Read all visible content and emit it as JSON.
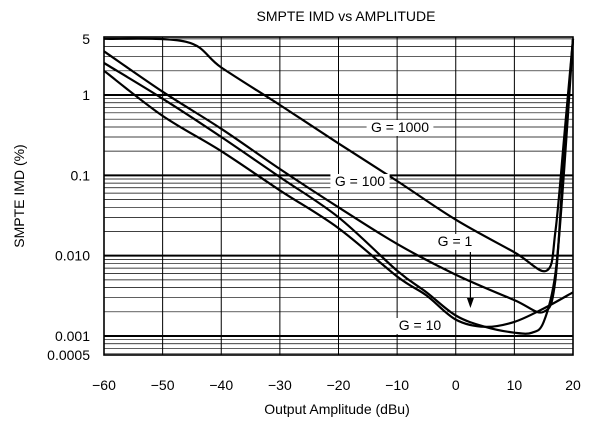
{
  "chart_data": {
    "type": "line",
    "title": "SMPTE IMD vs AMPLITUDE",
    "xlabel": "Output Amplitude (dBu)",
    "ylabel": "SMPTE IMD (%)",
    "xscale": "linear",
    "yscale": "log",
    "xlim": [
      -60,
      20
    ],
    "ylim": [
      0.0005,
      5
    ],
    "xticks": [
      -60,
      -50,
      -40,
      -30,
      -20,
      -10,
      0,
      10,
      20
    ],
    "xtick_labels": [
      "−60",
      "−50",
      "−40",
      "−30",
      "−20",
      "−10",
      "0",
      "10",
      "20"
    ],
    "yticks": [
      0.0005,
      0.001,
      0.01,
      0.1,
      1,
      5
    ],
    "ytick_labels": [
      "0.0005",
      "0.001",
      "0.010",
      "0.1",
      "1",
      "5"
    ],
    "grid": true,
    "series": [
      {
        "name": "G = 1000",
        "x": [
          -60,
          -46,
          -40,
          -30,
          -20,
          -10,
          0,
          10,
          15.5,
          17,
          18.5,
          20
        ],
        "y": [
          5,
          4.6,
          2.2,
          0.75,
          0.25,
          0.085,
          0.028,
          0.011,
          0.0065,
          0.02,
          0.3,
          5
        ]
      },
      {
        "name": "G = 100",
        "x": [
          -60,
          -50,
          -40,
          -30,
          -20,
          -10,
          0,
          10,
          15,
          17,
          18.5,
          20
        ],
        "y": [
          3.5,
          1.1,
          0.38,
          0.12,
          0.04,
          0.014,
          0.0058,
          0.0028,
          0.002,
          0.005,
          0.2,
          5
        ]
      },
      {
        "name": "G = 10",
        "x": [
          -60,
          -50,
          -40,
          -30,
          -20,
          -10,
          -5,
          0,
          5,
          10,
          13,
          15,
          17,
          18.5,
          20
        ],
        "y": [
          2.5,
          0.9,
          0.3,
          0.095,
          0.03,
          0.0065,
          0.0035,
          0.0018,
          0.0013,
          0.0011,
          0.0011,
          0.0015,
          0.006,
          0.12,
          5
        ]
      },
      {
        "name": "G = 1",
        "x": [
          -60,
          -50,
          -40,
          -30,
          -20,
          -10,
          -5,
          0,
          5,
          10,
          15,
          20
        ],
        "y": [
          2,
          0.55,
          0.2,
          0.065,
          0.022,
          0.0055,
          0.0032,
          0.0016,
          0.0013,
          0.0015,
          0.0022,
          0.0035
        ]
      }
    ],
    "annotations": [
      "G = 1000",
      "G = 100",
      "G = 1",
      "G = 10"
    ]
  }
}
